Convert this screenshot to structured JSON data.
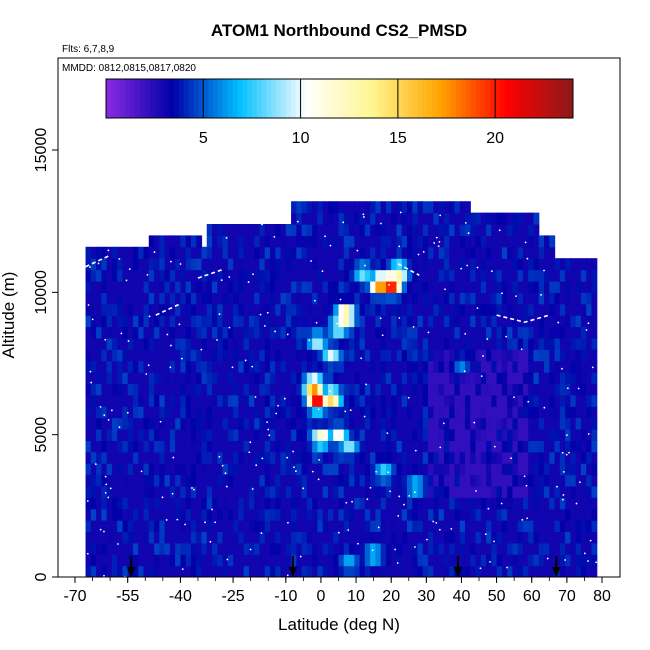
{
  "chart_data": {
    "type": "heatmap",
    "title": "ATOM1 Northbound CS2_PMSD",
    "subtitle_flights": "Flts: 6,7,8,9",
    "subtitle_dates": "MMDD: 0812,0815,0817,0820",
    "xlabel": "Latitude (deg N)",
    "ylabel": "Altitude (m)",
    "xlim": [
      -70,
      80
    ],
    "ylim": [
      0,
      18000
    ],
    "x_ticks": [
      -70,
      -55,
      -40,
      -25,
      -10,
      0,
      10,
      20,
      30,
      40,
      50,
      60,
      70,
      80
    ],
    "x_tick_labels": [
      "-70",
      "-55",
      "-40",
      "-25",
      "-10",
      "0",
      "10",
      "20",
      "30",
      "40",
      "50",
      "60",
      "70",
      "80"
    ],
    "y_ticks": [
      0,
      5000,
      10000,
      15000
    ],
    "y_tick_labels": [
      "0",
      "5000",
      "10000",
      "15000"
    ],
    "colorbar": {
      "range": [
        0,
        24
      ],
      "ticks": [
        5,
        10,
        15,
        20
      ],
      "tick_labels": [
        "5",
        "10",
        "15",
        "20"
      ],
      "colors": [
        "#8a2be2",
        "#0000a8",
        "#00bfff",
        "#ffffff",
        "#fff68f",
        "#ffa500",
        "#ff0000",
        "#8b1a1a"
      ]
    },
    "background_value": 3,
    "column_tops": [
      {
        "lat_from": -67,
        "lat_to": -49,
        "top_alt": 11500
      },
      {
        "lat_from": -49,
        "lat_to": -34,
        "top_alt": 12000
      },
      {
        "lat_from": -34,
        "lat_to": -32,
        "top_alt": 11500
      },
      {
        "lat_from": -32,
        "lat_to": -8,
        "top_alt": 12400
      },
      {
        "lat_from": -8,
        "lat_to": 42,
        "top_alt": 12900
      },
      {
        "lat_from": 42,
        "lat_to": 62,
        "top_alt": 12500
      },
      {
        "lat_from": 62,
        "lat_to": 66,
        "top_alt": 12000
      },
      {
        "lat_from": 66,
        "lat_to": 79,
        "top_alt": 11000
      }
    ],
    "hotspots": [
      {
        "lat": 20,
        "alt": 10300,
        "value": 23
      },
      {
        "lat": 17,
        "alt": 10300,
        "value": 20
      },
      {
        "lat": 22,
        "alt": 10700,
        "value": 14
      },
      {
        "lat": 12,
        "alt": 10700,
        "value": 9
      },
      {
        "lat": 7,
        "alt": 9200,
        "value": 17
      },
      {
        "lat": 5,
        "alt": 8800,
        "value": 11
      },
      {
        "lat": -1,
        "alt": 8300,
        "value": 10
      },
      {
        "lat": 3,
        "alt": 7800,
        "value": 10
      },
      {
        "lat": -2,
        "alt": 6700,
        "value": 19
      },
      {
        "lat": -1,
        "alt": 6200,
        "value": 22
      },
      {
        "lat": 3,
        "alt": 6300,
        "value": 16
      },
      {
        "lat": 0,
        "alt": 4900,
        "value": 13
      },
      {
        "lat": 5,
        "alt": 5000,
        "value": 11
      },
      {
        "lat": 8,
        "alt": 4600,
        "value": 9
      },
      {
        "lat": 18,
        "alt": 3700,
        "value": 8
      },
      {
        "lat": 27,
        "alt": 3200,
        "value": 8
      },
      {
        "lat": 15,
        "alt": 800,
        "value": 8
      },
      {
        "lat": 8,
        "alt": 500,
        "value": 7
      },
      {
        "lat": 40,
        "alt": 7500,
        "value": 7
      }
    ],
    "flight_path_segments": [
      [
        [
          -67,
          10900
        ],
        [
          -60,
          11300
        ]
      ],
      [
        [
          -35,
          10500
        ],
        [
          -28,
          10800
        ]
      ],
      [
        [
          -47,
          9200
        ],
        [
          -40,
          9600
        ]
      ],
      [
        [
          50,
          9200
        ],
        [
          58,
          8950
        ],
        [
          65,
          9200
        ]
      ],
      [
        [
          22,
          11000
        ],
        [
          28,
          10600
        ]
      ]
    ],
    "arrow_markers_lat": [
      -54,
      -8,
      39,
      67
    ]
  }
}
